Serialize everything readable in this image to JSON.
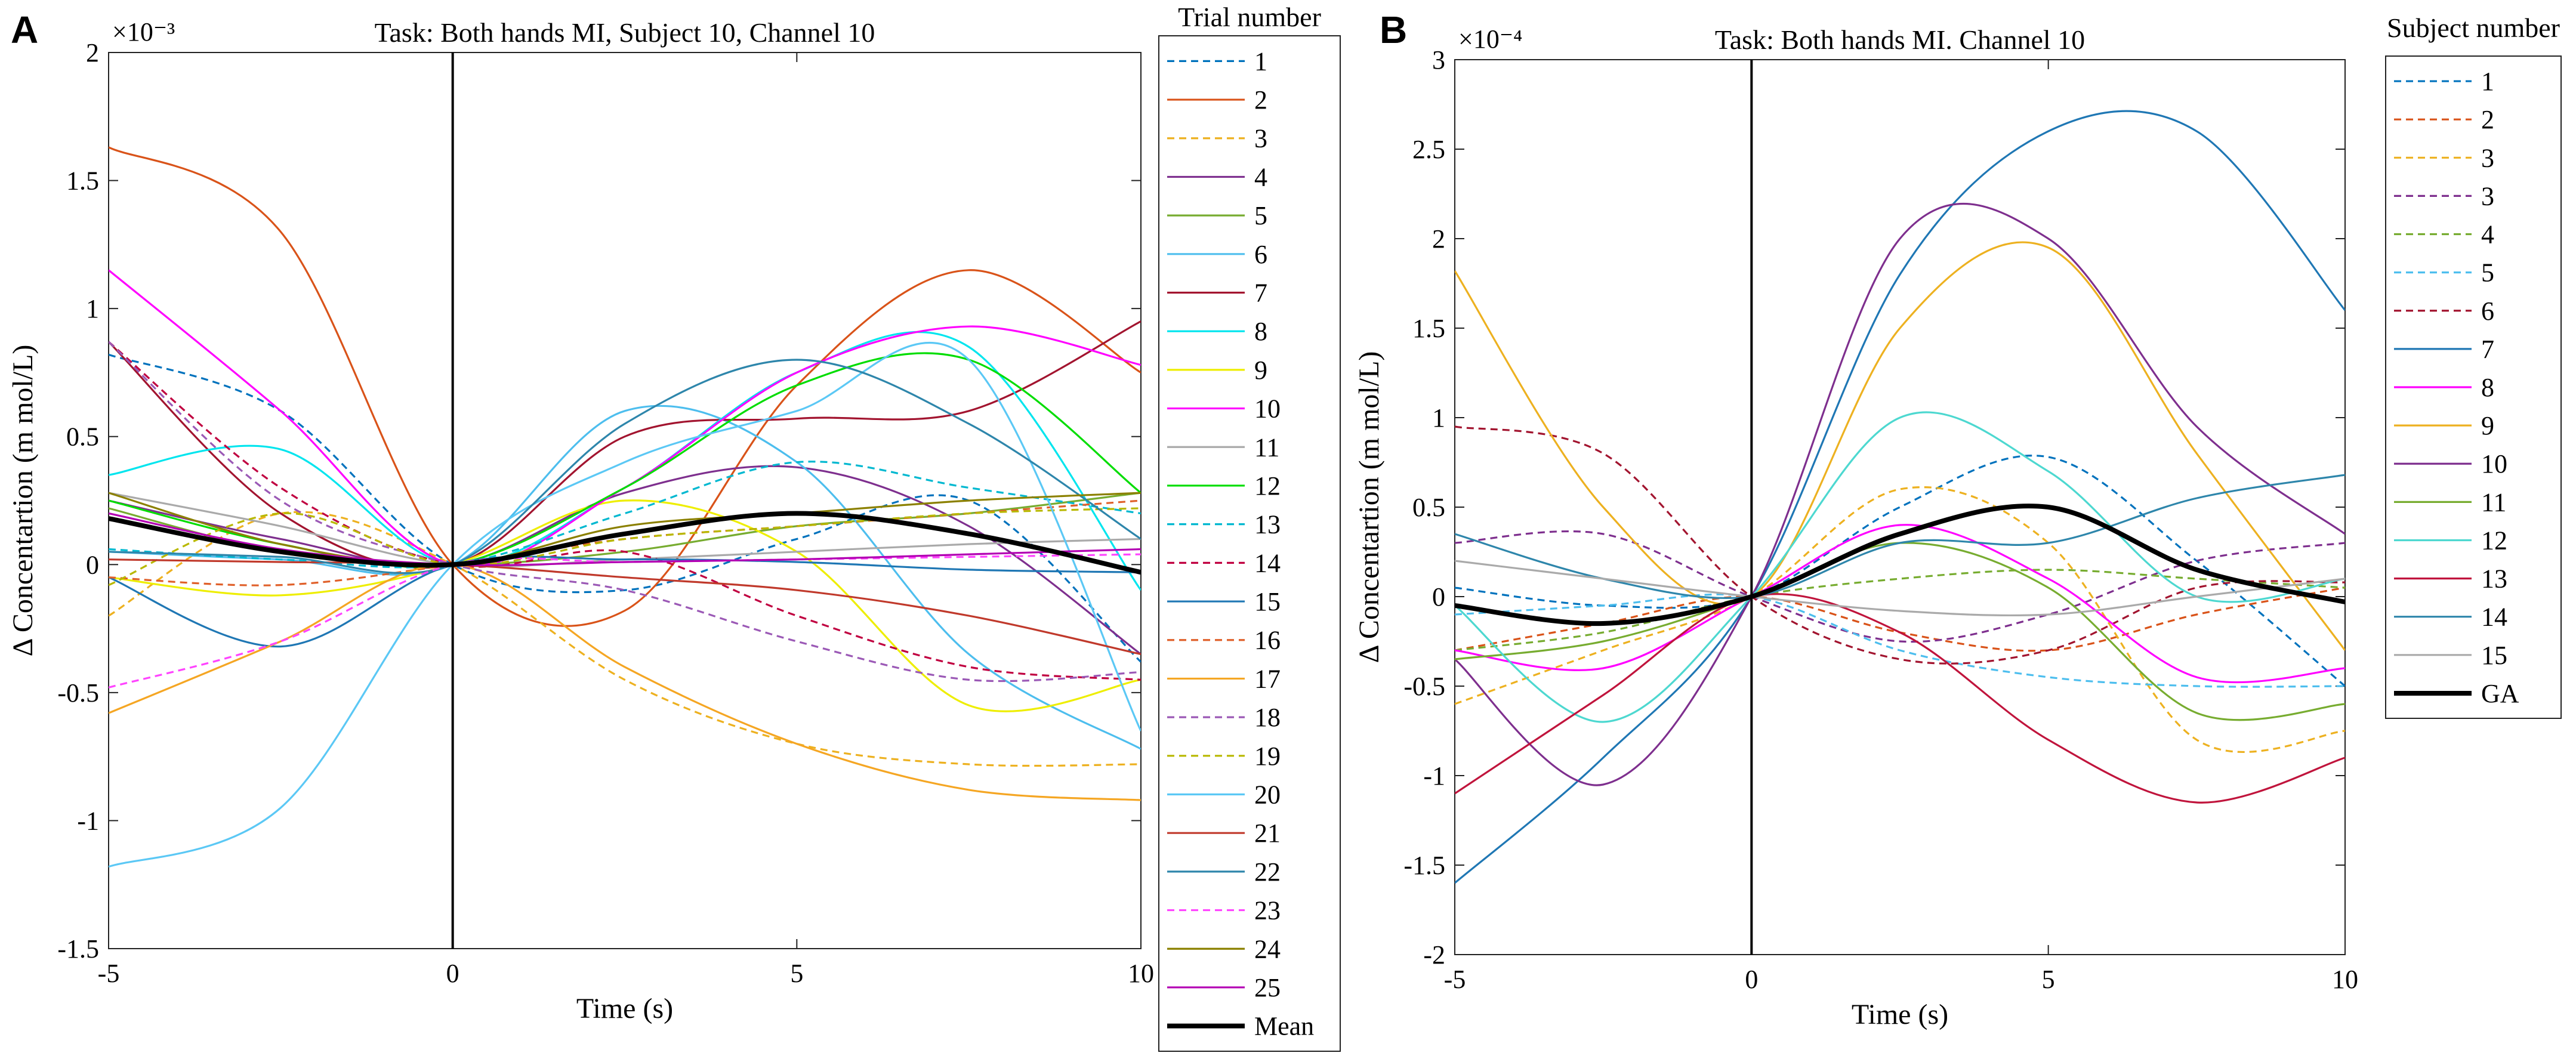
{
  "chart_data": [
    {
      "panel": "A",
      "type": "line",
      "title": "Task: Both hands MI, Subject 10, Channel 10",
      "xlabel": "Time (s)",
      "ylabel": "Δ Concentartion (m mol/L)",
      "exponent_label": "×10⁻³",
      "xlim": [
        -5,
        10
      ],
      "ylim": [
        -1.5,
        2
      ],
      "xticks": [
        -5,
        0,
        5,
        10
      ],
      "xtick_labels": [
        "-5",
        "0",
        "5",
        "10"
      ],
      "yticks": [
        -1.5,
        -1,
        -0.5,
        0,
        0.5,
        1,
        1.5,
        2
      ],
      "ytick_labels": [
        "-1.5",
        "-1",
        "-0.5",
        "0",
        "0.5",
        "1",
        "1.5",
        "2"
      ],
      "vline_x": 0,
      "legend_title": "Trial number",
      "legend_position": "right",
      "x": [
        -5,
        -2.5,
        0,
        2.5,
        5,
        7.5,
        10
      ],
      "series": [
        {
          "name": "1",
          "color": "#0072BD",
          "dash": true,
          "values": [
            0.82,
            0.6,
            0,
            -0.1,
            0.1,
            0.25,
            -0.38
          ]
        },
        {
          "name": "2",
          "color": "#D95319",
          "dash": false,
          "values": [
            1.63,
            1.3,
            0,
            -0.18,
            0.7,
            1.15,
            0.75
          ]
        },
        {
          "name": "3",
          "color": "#EDB120",
          "dash": true,
          "values": [
            -0.2,
            0.2,
            0,
            -0.45,
            -0.7,
            -0.78,
            -0.78
          ]
        },
        {
          "name": "4",
          "color": "#7E2F8E",
          "dash": false,
          "values": [
            0.25,
            0.1,
            0,
            0.28,
            0.38,
            0.15,
            -0.35
          ]
        },
        {
          "name": "5",
          "color": "#77AC30",
          "dash": false,
          "values": [
            0.22,
            0.05,
            0,
            0.05,
            0.15,
            0.2,
            0.28
          ]
        },
        {
          "name": "6",
          "color": "#4DBEEE",
          "dash": false,
          "values": [
            0.05,
            0.02,
            0,
            0.6,
            0.4,
            -0.35,
            -0.72
          ]
        },
        {
          "name": "7",
          "color": "#A2142F",
          "dash": false,
          "values": [
            0.87,
            0.2,
            0,
            0.5,
            0.57,
            0.6,
            0.95
          ]
        },
        {
          "name": "8",
          "color": "#00E5EE",
          "dash": false,
          "values": [
            0.35,
            0.45,
            0,
            0.3,
            0.75,
            0.85,
            -0.1
          ]
        },
        {
          "name": "9",
          "color": "#EEEE00",
          "dash": false,
          "values": [
            -0.05,
            -0.12,
            0,
            0.25,
            0.05,
            -0.55,
            -0.45
          ]
        },
        {
          "name": "10",
          "color": "#FF00FF",
          "dash": false,
          "values": [
            1.15,
            0.6,
            0,
            0.3,
            0.75,
            0.93,
            0.78
          ]
        },
        {
          "name": "11",
          "color": "#AAAAAA",
          "dash": false,
          "values": [
            0.28,
            0.15,
            0,
            0.02,
            0.05,
            0.08,
            0.1
          ]
        },
        {
          "name": "12",
          "color": "#00DD00",
          "dash": false,
          "values": [
            0.25,
            0.08,
            0,
            0.3,
            0.7,
            0.8,
            0.28
          ]
        },
        {
          "name": "13",
          "color": "#00B8D0",
          "dash": true,
          "values": [
            0.06,
            0.02,
            0,
            0.2,
            0.4,
            0.3,
            0.2
          ]
        },
        {
          "name": "14",
          "color": "#C00040",
          "dash": true,
          "values": [
            0.87,
            0.3,
            0,
            0.05,
            -0.2,
            -0.4,
            -0.45
          ]
        },
        {
          "name": "15",
          "color": "#1F77B4",
          "dash": false,
          "values": [
            -0.05,
            -0.32,
            0,
            0.02,
            0.01,
            -0.02,
            -0.03
          ]
        },
        {
          "name": "16",
          "color": "#E0602A",
          "dash": true,
          "values": [
            -0.05,
            -0.08,
            0,
            0.1,
            0.15,
            0.2,
            0.25
          ]
        },
        {
          "name": "17",
          "color": "#F5A623",
          "dash": false,
          "values": [
            -0.58,
            -0.3,
            0,
            -0.4,
            -0.7,
            -0.88,
            -0.92
          ]
        },
        {
          "name": "18",
          "color": "#9B59B6",
          "dash": true,
          "values": [
            0.87,
            0.25,
            0,
            -0.1,
            -0.3,
            -0.45,
            -0.42
          ]
        },
        {
          "name": "19",
          "color": "#B8B800",
          "dash": true,
          "values": [
            -0.08,
            0.2,
            0,
            0.1,
            0.15,
            0.2,
            0.22
          ]
        },
        {
          "name": "20",
          "color": "#5BC8F5",
          "dash": false,
          "values": [
            -1.18,
            -0.95,
            0,
            0.4,
            0.6,
            0.8,
            -0.65
          ]
        },
        {
          "name": "21",
          "color": "#C0392B",
          "dash": false,
          "values": [
            0.02,
            0.01,
            0,
            -0.05,
            -0.1,
            -0.2,
            -0.35
          ]
        },
        {
          "name": "22",
          "color": "#2E86AB",
          "dash": false,
          "values": [
            0.05,
            0.03,
            0,
            0.55,
            0.8,
            0.55,
            0.1
          ]
        },
        {
          "name": "23",
          "color": "#FF44FF",
          "dash": true,
          "values": [
            -0.48,
            -0.3,
            0,
            0.01,
            0.02,
            0.03,
            0.04
          ]
        },
        {
          "name": "24",
          "color": "#8B8000",
          "dash": false,
          "values": [
            0.28,
            0.08,
            0,
            0.15,
            0.2,
            0.25,
            0.28
          ]
        },
        {
          "name": "25",
          "color": "#B300B3",
          "dash": false,
          "values": [
            0.2,
            0.06,
            0,
            0.01,
            0.02,
            0.04,
            0.06
          ]
        }
      ],
      "mean": {
        "name": "Mean",
        "color": "#000000",
        "values": [
          0.18,
          0.05,
          0,
          0.12,
          0.2,
          0.12,
          -0.03
        ]
      }
    },
    {
      "panel": "B",
      "type": "line",
      "title": "Task: Both hands MI. Channel 10",
      "xlabel": "Time (s)",
      "ylabel": "Δ Concentartion (m mol/L)",
      "exponent_label": "×10⁻⁴",
      "xlim": [
        -5,
        10
      ],
      "ylim": [
        -2,
        3
      ],
      "xticks": [
        -5,
        0,
        5,
        10
      ],
      "xtick_labels": [
        "-5",
        "0",
        "5",
        "10"
      ],
      "yticks": [
        -2,
        -1.5,
        -1,
        -0.5,
        0,
        0.5,
        1,
        1.5,
        2,
        2.5,
        3
      ],
      "ytick_labels": [
        "-2",
        "-1.5",
        "-1",
        "-0.5",
        "0",
        "0.5",
        "1",
        "1.5",
        "2",
        "2.5",
        "3"
      ],
      "vline_x": 0,
      "legend_title": "Subject number",
      "legend_position": "right",
      "x": [
        -5,
        -2.5,
        0,
        2.5,
        5,
        7.5,
        10
      ],
      "series": [
        {
          "name": "1",
          "color": "#0072BD",
          "dash": true,
          "values": [
            0.05,
            -0.05,
            0,
            0.5,
            0.78,
            0.2,
            -0.5
          ]
        },
        {
          "name": "2",
          "color": "#D95319",
          "dash": true,
          "values": [
            -0.3,
            -0.15,
            0,
            -0.2,
            -0.3,
            -0.1,
            0.05
          ]
        },
        {
          "name": "3",
          "color": "#EDB120",
          "dash": true,
          "values": [
            -0.6,
            -0.3,
            0,
            0.6,
            0.3,
            -0.8,
            -0.75
          ]
        },
        {
          "name": "3",
          "color": "#7E2F8E",
          "dash": true,
          "values": [
            0.3,
            0.35,
            0,
            -0.25,
            -0.1,
            0.2,
            0.3
          ]
        },
        {
          "name": "4",
          "color": "#77AC30",
          "dash": true,
          "values": [
            -0.3,
            -0.2,
            0,
            0.1,
            0.15,
            0.1,
            0.05
          ]
        },
        {
          "name": "5",
          "color": "#4DBEEE",
          "dash": true,
          "values": [
            -0.1,
            -0.05,
            0,
            -0.3,
            -0.45,
            -0.5,
            -0.5
          ]
        },
        {
          "name": "6",
          "color": "#A2142F",
          "dash": true,
          "values": [
            0.95,
            0.8,
            0,
            -0.35,
            -0.3,
            0.05,
            0.08
          ]
        },
        {
          "name": "7",
          "color": "#1F77B4",
          "dash": false,
          "values": [
            -1.6,
            -0.9,
            0,
            1.8,
            2.6,
            2.6,
            1.6
          ]
        },
        {
          "name": "8",
          "color": "#FF00FF",
          "dash": false,
          "values": [
            -0.3,
            -0.4,
            0,
            0.4,
            0.1,
            -0.45,
            -0.4
          ]
        },
        {
          "name": "9",
          "color": "#EDB120",
          "dash": false,
          "values": [
            1.82,
            0.5,
            0,
            1.5,
            1.95,
            0.8,
            -0.3
          ]
        },
        {
          "name": "10",
          "color": "#7E2F8E",
          "dash": false,
          "values": [
            -0.35,
            -1.05,
            0,
            2.0,
            2.0,
            0.95,
            0.35
          ]
        },
        {
          "name": "11",
          "color": "#77AC30",
          "dash": false,
          "values": [
            -0.35,
            -0.25,
            0,
            0.3,
            0.05,
            -0.65,
            -0.6
          ]
        },
        {
          "name": "12",
          "color": "#4DD8D0",
          "dash": false,
          "values": [
            -0.05,
            -0.7,
            0,
            1.0,
            0.7,
            0.0,
            0.1
          ]
        },
        {
          "name": "13",
          "color": "#C0143C",
          "dash": false,
          "values": [
            -1.1,
            -0.55,
            0,
            -0.2,
            -0.8,
            -1.15,
            -0.9
          ]
        },
        {
          "name": "14",
          "color": "#2E86AB",
          "dash": false,
          "values": [
            0.35,
            0.1,
            0,
            0.3,
            0.3,
            0.55,
            0.68
          ]
        },
        {
          "name": "15",
          "color": "#AAAAAA",
          "dash": false,
          "values": [
            0.2,
            0.1,
            0,
            -0.08,
            -0.1,
            0.0,
            0.1
          ]
        }
      ],
      "mean": {
        "name": "GA",
        "color": "#000000",
        "values": [
          -0.05,
          -0.15,
          0,
          0.35,
          0.5,
          0.15,
          -0.03
        ]
      }
    }
  ]
}
